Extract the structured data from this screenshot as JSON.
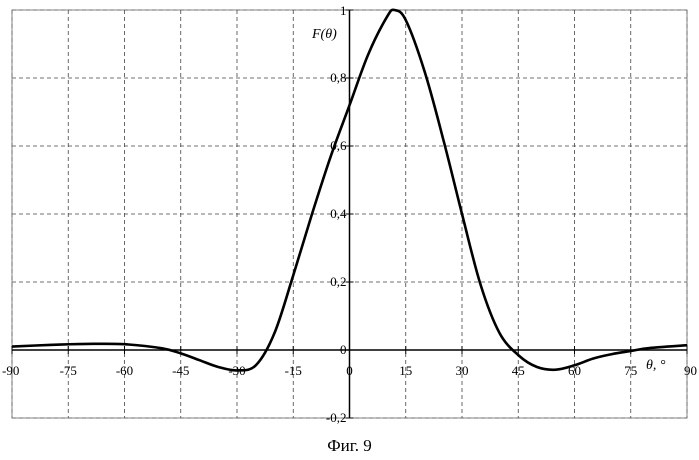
{
  "chart_data": {
    "type": "line",
    "ylabel": "F(θ)",
    "xlabel": "θ, °",
    "xlim": [
      -90,
      90
    ],
    "ylim": [
      -0.2,
      1
    ],
    "x_ticks": [
      -90,
      -75,
      -60,
      -45,
      -30,
      -15,
      0,
      15,
      30,
      45,
      60,
      75,
      90
    ],
    "x_tick_labels": [
      "-90",
      "-75",
      "-60",
      "-45",
      "-30",
      "-15",
      "0",
      "15",
      "30",
      "45",
      "60",
      "75",
      "90"
    ],
    "y_ticks": [
      -0.2,
      0,
      0.2,
      0.4,
      0.6,
      0.8,
      1
    ],
    "y_tick_labels": [
      "-0,2",
      "0",
      "0,2",
      "0,4",
      "0,6",
      "0,8",
      "1"
    ],
    "grid": true,
    "series": [
      {
        "x": [
          -90,
          -80,
          -70,
          -60,
          -50,
          -45,
          -40,
          -35,
          -30,
          -25,
          -20,
          -15,
          -10,
          -5,
          0,
          5,
          10,
          12,
          15,
          20,
          25,
          30,
          35,
          40,
          45,
          50,
          55,
          60,
          65,
          70,
          75,
          80,
          90
        ],
        "y": [
          0.01,
          0.015,
          0.018,
          0.017,
          0.005,
          -0.01,
          -0.03,
          -0.05,
          -0.06,
          -0.045,
          0.05,
          0.22,
          0.4,
          0.57,
          0.72,
          0.87,
          0.98,
          1.0,
          0.97,
          0.82,
          0.62,
          0.4,
          0.19,
          0.05,
          -0.015,
          -0.05,
          -0.058,
          -0.045,
          -0.025,
          -0.012,
          -0.003,
          0.006,
          0.014
        ]
      }
    ]
  },
  "caption": "Фиг. 9"
}
